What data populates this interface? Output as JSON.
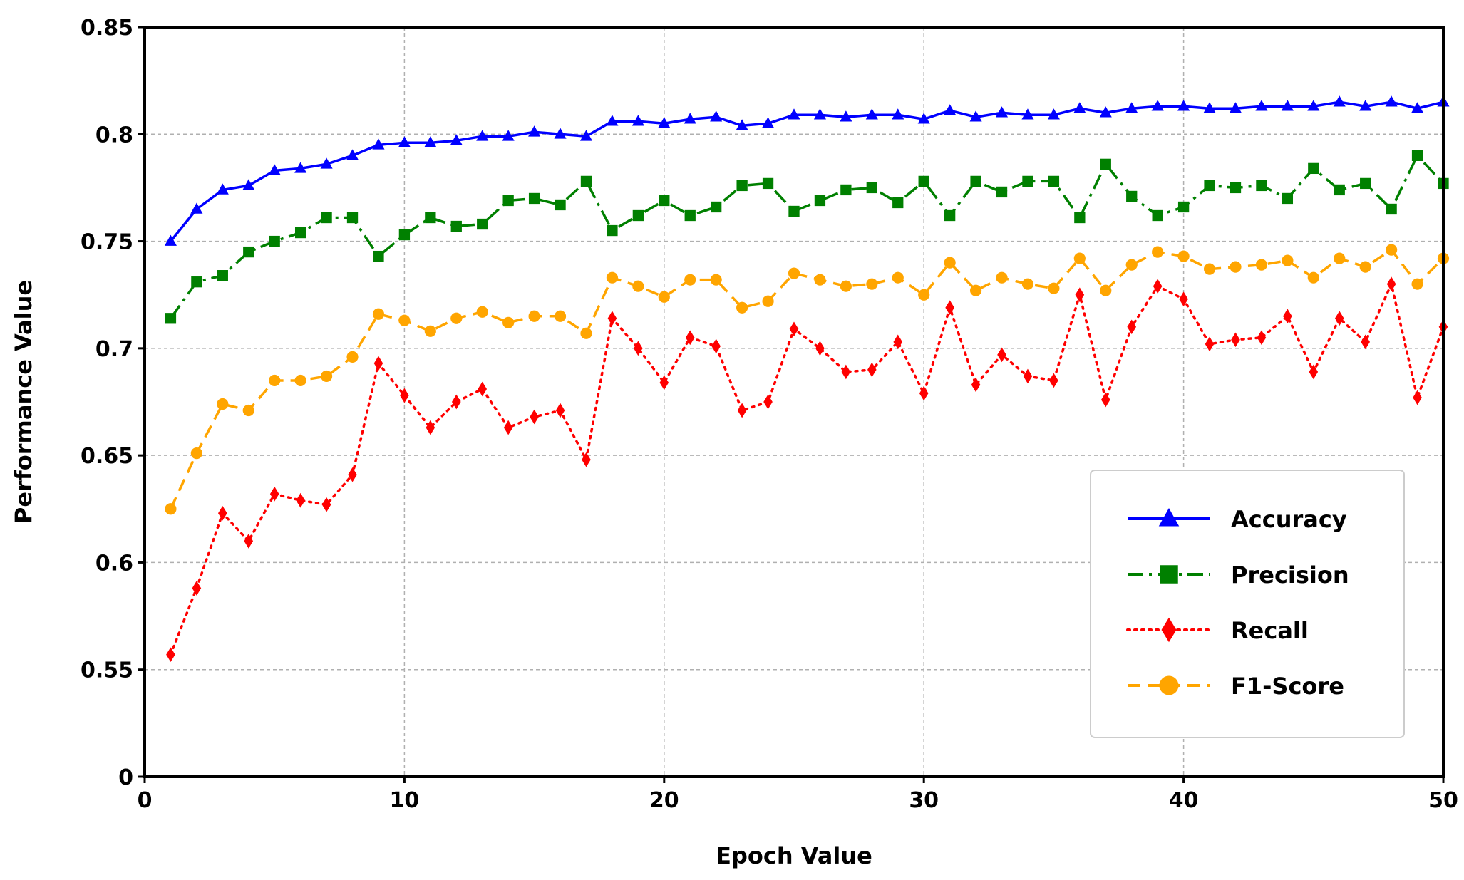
{
  "chart_data": {
    "type": "line",
    "title": "",
    "xlabel": "Epoch Value",
    "ylabel": "Performance Value",
    "xlim": [
      0,
      50
    ],
    "xticks": [
      0,
      10,
      20,
      30,
      40,
      50
    ],
    "ytick_labels": [
      "0",
      "0.55",
      "0.6",
      "0.65",
      "0.7",
      "0.75",
      "0.8",
      "0.85"
    ],
    "ytick_values": [
      0.5,
      0.55,
      0.6,
      0.65,
      0.7,
      0.75,
      0.8,
      0.85
    ],
    "y_axis_note": "broken axis: bottom tick labelled 0 sits where 0.5 would be",
    "grid": true,
    "legend_position": "lower-right",
    "x": [
      1,
      2,
      3,
      4,
      5,
      6,
      7,
      8,
      9,
      10,
      11,
      12,
      13,
      14,
      15,
      16,
      17,
      18,
      19,
      20,
      21,
      22,
      23,
      24,
      25,
      26,
      27,
      28,
      29,
      30,
      31,
      32,
      33,
      34,
      35,
      36,
      37,
      38,
      39,
      40,
      41,
      42,
      43,
      44,
      45,
      46,
      47,
      48,
      49,
      50
    ],
    "series": [
      {
        "name": "Accuracy",
        "color": "#0000ff",
        "marker": "triangle",
        "linestyle": "solid",
        "values": [
          0.75,
          0.765,
          0.774,
          0.776,
          0.783,
          0.784,
          0.786,
          0.79,
          0.795,
          0.796,
          0.796,
          0.797,
          0.799,
          0.799,
          0.801,
          0.8,
          0.799,
          0.806,
          0.806,
          0.805,
          0.807,
          0.808,
          0.804,
          0.805,
          0.809,
          0.809,
          0.808,
          0.809,
          0.809,
          0.807,
          0.811,
          0.808,
          0.81,
          0.809,
          0.809,
          0.812,
          0.81,
          0.812,
          0.813,
          0.813,
          0.812,
          0.812,
          0.813,
          0.813,
          0.813,
          0.815,
          0.813,
          0.815,
          0.812,
          0.815
        ]
      },
      {
        "name": "Precision",
        "color": "#008000",
        "marker": "square",
        "linestyle": "dashdot",
        "values": [
          0.714,
          0.731,
          0.734,
          0.745,
          0.75,
          0.754,
          0.761,
          0.761,
          0.743,
          0.753,
          0.761,
          0.757,
          0.758,
          0.769,
          0.77,
          0.767,
          0.778,
          0.755,
          0.762,
          0.769,
          0.762,
          0.766,
          0.776,
          0.777,
          0.764,
          0.769,
          0.774,
          0.775,
          0.768,
          0.778,
          0.762,
          0.778,
          0.773,
          0.778,
          0.778,
          0.761,
          0.786,
          0.771,
          0.762,
          0.766,
          0.776,
          0.775,
          0.776,
          0.77,
          0.784,
          0.774,
          0.777,
          0.765,
          0.79,
          0.777
        ]
      },
      {
        "name": "Recall",
        "color": "#ff0000",
        "marker": "diamond",
        "linestyle": "dotted",
        "values": [
          0.557,
          0.588,
          0.623,
          0.61,
          0.632,
          0.629,
          0.627,
          0.641,
          0.693,
          0.678,
          0.663,
          0.675,
          0.681,
          0.663,
          0.668,
          0.671,
          0.648,
          0.714,
          0.7,
          0.684,
          0.705,
          0.701,
          0.671,
          0.675,
          0.709,
          0.7,
          0.689,
          0.69,
          0.703,
          0.679,
          0.719,
          0.683,
          0.697,
          0.687,
          0.685,
          0.725,
          0.676,
          0.71,
          0.729,
          0.723,
          0.702,
          0.704,
          0.705,
          0.715,
          0.689,
          0.714,
          0.703,
          0.73,
          0.677,
          0.71
        ]
      },
      {
        "name": "F1-Score",
        "color": "#ffa500",
        "marker": "circle",
        "linestyle": "dashed",
        "values": [
          0.625,
          0.651,
          0.674,
          0.671,
          0.685,
          0.685,
          0.687,
          0.696,
          0.716,
          0.713,
          0.708,
          0.714,
          0.717,
          0.712,
          0.715,
          0.715,
          0.707,
          0.733,
          0.729,
          0.724,
          0.732,
          0.732,
          0.719,
          0.722,
          0.735,
          0.732,
          0.729,
          0.73,
          0.733,
          0.725,
          0.74,
          0.727,
          0.733,
          0.73,
          0.728,
          0.742,
          0.727,
          0.739,
          0.745,
          0.743,
          0.737,
          0.738,
          0.739,
          0.741,
          0.733,
          0.742,
          0.738,
          0.746,
          0.73,
          0.742
        ]
      }
    ]
  }
}
